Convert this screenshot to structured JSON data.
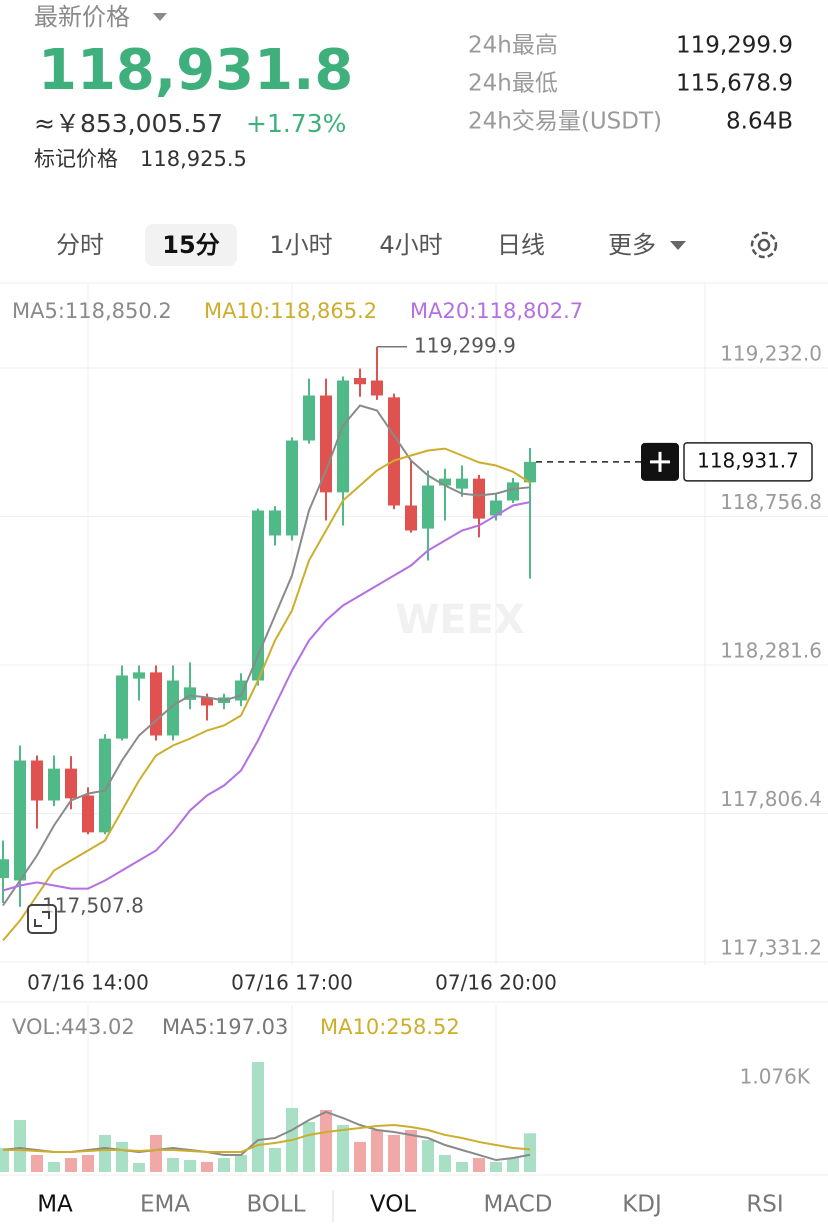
{
  "header": {
    "title": "最新价格",
    "price": "118,931.8",
    "approx": "≈￥853,005.57",
    "change": "+1.73%",
    "mark_label": "标记价格",
    "mark_price": "118,925.5"
  },
  "stats": [
    {
      "label": "24h最高",
      "value": "119,299.9"
    },
    {
      "label": "24h最低",
      "value": "115,678.9"
    },
    {
      "label": "24h交易量(USDT)",
      "value": "8.64B"
    }
  ],
  "intervals": [
    {
      "label": "分时",
      "active": false
    },
    {
      "label": "15分",
      "active": true
    },
    {
      "label": "1小时",
      "active": false
    },
    {
      "label": "4小时",
      "active": false
    },
    {
      "label": "日线",
      "active": false
    },
    {
      "label": "更多",
      "active": false
    }
  ],
  "indicators": [
    {
      "label": "MA",
      "active": true
    },
    {
      "label": "EMA",
      "active": false
    },
    {
      "label": "BOLL",
      "active": false
    },
    {
      "label": "VOL",
      "active": true
    },
    {
      "label": "MACD",
      "active": false
    },
    {
      "label": "KDJ",
      "active": false
    },
    {
      "label": "RSI",
      "active": false
    }
  ],
  "watermark": "WEEX",
  "chart_data": [
    {
      "type": "candlestick",
      "categories": [
        null,
        null,
        null,
        null,
        null,
        "07/16 14:00",
        null,
        null,
        null,
        null,
        null,
        null,
        null,
        null,
        null,
        null,
        null,
        "07/16 17:00",
        null,
        null,
        null,
        null,
        null,
        null,
        null,
        null,
        null,
        null,
        null,
        "07/16 20:00",
        null,
        null
      ],
      "open": [
        117600,
        117592,
        117976,
        117848,
        117950,
        117864,
        117746,
        118046,
        118238,
        118258,
        118056,
        118170,
        118178,
        118160,
        118168,
        118232,
        118696,
        118696,
        119000,
        119144,
        118834,
        119200,
        119192,
        119138,
        118792,
        118718,
        118856,
        118846,
        118878,
        118760,
        118808,
        118866
      ],
      "high": [
        117720,
        118024,
        117992,
        117992,
        117990,
        117890,
        118060,
        118280,
        118280,
        118280,
        118280,
        118290,
        118190,
        118190,
        118255,
        118782,
        118790,
        119010,
        119198,
        119198,
        119205,
        119230,
        119299.9,
        119150,
        118936,
        118904,
        118910,
        118920,
        118890,
        118830,
        118880,
        118976
      ],
      "low": [
        117520,
        117507.8,
        117758,
        117830,
        117820,
        117740,
        117740,
        118040,
        118168,
        118040,
        118040,
        118140,
        118104,
        118140,
        118150,
        118216,
        118664,
        118680,
        118990,
        118744,
        118728,
        119140,
        119130,
        118780,
        118705,
        118616,
        118744,
        118820,
        118690,
        118744,
        118800,
        118558
      ],
      "close": [
        117660,
        117976,
        117848,
        117950,
        117855,
        117746,
        118046,
        118248,
        118258,
        118056,
        118232,
        118210,
        118152,
        118178,
        118232,
        118776,
        118776,
        119000,
        119144,
        118834,
        119192,
        119180,
        119144,
        118792,
        118712,
        118856,
        118878,
        118878,
        118750,
        118808,
        118866,
        118931.7
      ],
      "up_color": "#4fba88",
      "down_color": "#e0524f",
      "series": [
        {
          "name": "MA5:118,850.2",
          "color": "#8a8a8a",
          "values": [
            117512,
            117592,
            117672,
            117768,
            117848,
            117870,
            117880,
            117976,
            118056,
            118104,
            118152,
            118184,
            118178,
            118168,
            118184,
            118312,
            118440,
            118568,
            118776,
            118904,
            119048,
            119112,
            119096,
            119016,
            118936,
            118888,
            118856,
            118830,
            118824,
            118830,
            118845,
            118850.2
          ]
        },
        {
          "name": "MA10:118,865.2",
          "color": "#cdae2c",
          "values": [
            117400,
            117464,
            117544,
            117624,
            117656,
            117688,
            117720,
            117816,
            117912,
            117992,
            118024,
            118046,
            118072,
            118088,
            118120,
            118232,
            118360,
            118456,
            118616,
            118712,
            118808,
            118856,
            118904,
            118936,
            118952,
            118968,
            118974,
            118952,
            118930,
            118920,
            118900,
            118865.2
          ]
        },
        {
          "name": "MA20:118,802.7",
          "color": "#b46fe2",
          "values": [
            117560,
            117576,
            117586,
            117576,
            117566,
            117566,
            117592,
            117624,
            117656,
            117688,
            117746,
            117816,
            117864,
            117896,
            117944,
            118040,
            118152,
            118264,
            118360,
            118424,
            118472,
            118504,
            118536,
            118568,
            118600,
            118648,
            118680,
            118712,
            118728,
            118760,
            118792,
            118802.7
          ]
        }
      ],
      "ylim": [
        117321.6,
        119456
      ],
      "yticks": [
        {
          "value": 119232,
          "label": "119,232.0"
        },
        {
          "value": 118756.8,
          "label": "118,756.8"
        },
        {
          "value": 118281.6,
          "label": "118,281.6"
        },
        {
          "value": 117806.4,
          "label": "117,806.4"
        },
        {
          "value": 117331.2,
          "label": "117,331.2"
        }
      ],
      "grid": true,
      "high_label": "119,299.9",
      "low_label": "117,507.8",
      "last_label": "118,931.7"
    },
    {
      "type": "bar",
      "label": "VOL:443.02",
      "values": [
        275,
        595,
        195,
        115,
        160,
        195,
        424,
        344,
        103,
        424,
        160,
        137,
        115,
        160,
        195,
        1260,
        275,
        733,
        573,
        710,
        538,
        344,
        481,
        424,
        481,
        366,
        195,
        115,
        160,
        115,
        160,
        443.02
      ],
      "up_color": "#a9dfc4",
      "down_color": "#f1a9a8",
      "series": [
        {
          "name": "MA5:197.03",
          "color": "#8a8a8a",
          "values": [
            252,
            275,
            252,
            229,
            229,
            252,
            275,
            252,
            229,
            252,
            275,
            252,
            229,
            195,
            195,
            366,
            389,
            481,
            595,
            687,
            618,
            538,
            481,
            458,
            424,
            389,
            309,
            252,
            195,
            137,
            160,
            197.03
          ]
        },
        {
          "name": "MA10:258.52",
          "color": "#cdae2c",
          "values": [
            252,
            252,
            240,
            229,
            229,
            240,
            252,
            252,
            240,
            252,
            252,
            240,
            229,
            229,
            229,
            309,
            332,
            366,
            424,
            458,
            481,
            504,
            527,
            538,
            515,
            481,
            424,
            389,
            344,
            309,
            275,
            258.52
          ]
        }
      ],
      "ylim": [
        0,
        1511
      ],
      "yticks": [
        {
          "value": 1076,
          "label": "1.076K"
        }
      ]
    }
  ]
}
